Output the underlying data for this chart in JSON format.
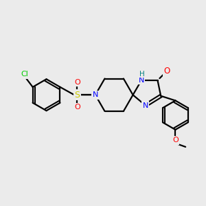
{
  "background_color": "#ebebeb",
  "bond_color": "#000000",
  "atom_colors": {
    "Cl": "#00cc00",
    "S": "#cccc00",
    "N": "#0000ff",
    "O": "#ff0000",
    "H": "#008080",
    "C": "#000000"
  },
  "figsize": [
    3.0,
    3.0
  ],
  "dpi": 100
}
